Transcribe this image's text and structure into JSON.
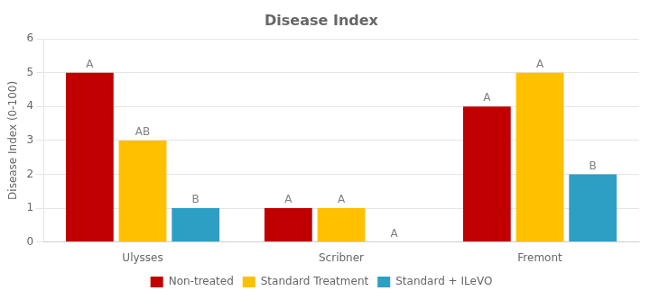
{
  "chart_data": {
    "type": "bar",
    "title": "Disease Index",
    "ylabel": "Disease Index (0-100)",
    "categories": [
      "Ulysses",
      "Scribner",
      "Fremont"
    ],
    "series": [
      {
        "name": "Non-treated",
        "color": "#c00000",
        "values": [
          5,
          1,
          4
        ],
        "annotations": [
          "A",
          "A",
          "A"
        ]
      },
      {
        "name": "Standard Treatment",
        "color": "#ffc000",
        "values": [
          3,
          1,
          5
        ],
        "annotations": [
          "AB",
          "A",
          "A"
        ]
      },
      {
        "name": "Standard + ILeVO",
        "color": "#2e9fc4",
        "values": [
          1,
          0,
          2
        ],
        "annotations": [
          "B",
          "A",
          "B"
        ]
      }
    ],
    "ylim": [
      0,
      6
    ],
    "yticks": [
      0,
      1,
      2,
      3,
      4,
      5,
      6
    ],
    "grid": true,
    "legend": "bottom"
  }
}
